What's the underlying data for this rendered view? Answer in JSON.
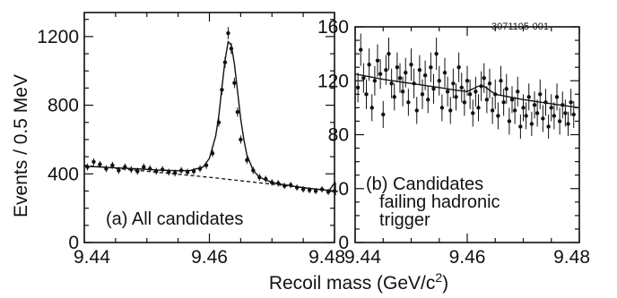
{
  "figure_tag": "3071105-001",
  "xlabel": "Recoil mass (GeV/c²)",
  "ylabel": "Events / 0.5 MeV",
  "chart_data": [
    {
      "type": "scatter",
      "annotation": "(a) All candidates",
      "xlim": [
        9.44,
        9.48
      ],
      "ylim": [
        0,
        1340
      ],
      "x_ticks": [
        9.44,
        9.46,
        9.48
      ],
      "x_tick_labels": [
        "9.44",
        "9.46",
        "9.48"
      ],
      "y_ticks": [
        0,
        400,
        800,
        1200
      ],
      "y_tick_labels": [
        "0",
        "400",
        "800",
        "1200"
      ],
      "points": [
        [
          9.4405,
          440,
          20
        ],
        [
          9.4415,
          470,
          20
        ],
        [
          9.4425,
          455,
          20
        ],
        [
          9.4435,
          430,
          20
        ],
        [
          9.4445,
          450,
          20
        ],
        [
          9.4455,
          420,
          20
        ],
        [
          9.4465,
          440,
          20
        ],
        [
          9.4475,
          425,
          20
        ],
        [
          9.4485,
          415,
          20
        ],
        [
          9.4495,
          440,
          20
        ],
        [
          9.4505,
          430,
          20
        ],
        [
          9.4515,
          415,
          20
        ],
        [
          9.4525,
          425,
          20
        ],
        [
          9.4535,
          410,
          20
        ],
        [
          9.4545,
          405,
          20
        ],
        [
          9.4555,
          420,
          20
        ],
        [
          9.4565,
          410,
          20
        ],
        [
          9.4575,
          415,
          20
        ],
        [
          9.4585,
          430,
          20
        ],
        [
          9.4595,
          450,
          21
        ],
        [
          9.4605,
          520,
          22
        ],
        [
          9.4615,
          700,
          26
        ],
        [
          9.462,
          890,
          30
        ],
        [
          9.4625,
          1050,
          32
        ],
        [
          9.463,
          1220,
          35
        ],
        [
          9.4635,
          1130,
          33
        ],
        [
          9.464,
          930,
          30
        ],
        [
          9.4645,
          760,
          27
        ],
        [
          9.465,
          600,
          24
        ],
        [
          9.466,
          480,
          22
        ],
        [
          9.467,
          420,
          21
        ],
        [
          9.468,
          380,
          20
        ],
        [
          9.469,
          370,
          19
        ],
        [
          9.47,
          350,
          19
        ],
        [
          9.471,
          345,
          19
        ],
        [
          9.472,
          330,
          18
        ],
        [
          9.473,
          335,
          18
        ],
        [
          9.474,
          320,
          18
        ],
        [
          9.475,
          310,
          18
        ],
        [
          9.476,
          305,
          18
        ],
        [
          9.477,
          300,
          18
        ],
        [
          9.478,
          310,
          18
        ],
        [
          9.479,
          295,
          18
        ],
        [
          9.48,
          300,
          18
        ]
      ],
      "fit_curve": [
        [
          9.44,
          445
        ],
        [
          9.444,
          437
        ],
        [
          9.448,
          430
        ],
        [
          9.452,
          422
        ],
        [
          9.455,
          418
        ],
        [
          9.457,
          420
        ],
        [
          9.459,
          440
        ],
        [
          9.46,
          490
        ],
        [
          9.461,
          620
        ],
        [
          9.4615,
          740
        ],
        [
          9.462,
          900
        ],
        [
          9.4625,
          1060
        ],
        [
          9.463,
          1170
        ],
        [
          9.4635,
          1150
        ],
        [
          9.464,
          1040
        ],
        [
          9.4645,
          880
        ],
        [
          9.465,
          720
        ],
        [
          9.4655,
          600
        ],
        [
          9.466,
          510
        ],
        [
          9.467,
          420
        ],
        [
          9.468,
          380
        ],
        [
          9.47,
          350
        ],
        [
          9.473,
          330
        ],
        [
          9.476,
          315
        ],
        [
          9.48,
          300
        ]
      ],
      "background_curve": [
        [
          9.44,
          450
        ],
        [
          9.46,
          380
        ],
        [
          9.48,
          300
        ]
      ]
    },
    {
      "type": "scatter",
      "annotation": [
        "(b) Candidates",
        "failing hadronic",
        "trigger"
      ],
      "xlim": [
        9.44,
        9.48
      ],
      "ylim": [
        0,
        160
      ],
      "x_ticks": [
        9.44,
        9.46,
        9.48
      ],
      "x_tick_labels": [
        "9.44",
        "9.46",
        "9.48"
      ],
      "y_ticks": [
        0,
        40,
        80,
        120,
        160
      ],
      "y_tick_labels": [
        "0",
        "40",
        "80",
        "120",
        "160"
      ],
      "points": [
        [
          9.4405,
          115,
          11
        ],
        [
          9.441,
          143,
          12
        ],
        [
          9.4415,
          122,
          11
        ],
        [
          9.442,
          110,
          11
        ],
        [
          9.4425,
          132,
          12
        ],
        [
          9.443,
          100,
          10
        ],
        [
          9.4435,
          120,
          11
        ],
        [
          9.444,
          135,
          12
        ],
        [
          9.4445,
          125,
          11
        ],
        [
          9.445,
          95,
          10
        ],
        [
          9.4455,
          128,
          11
        ],
        [
          9.446,
          140,
          12
        ],
        [
          9.4465,
          118,
          11
        ],
        [
          9.447,
          108,
          10
        ],
        [
          9.4475,
          130,
          11
        ],
        [
          9.448,
          122,
          11
        ],
        [
          9.4485,
          112,
          11
        ],
        [
          9.449,
          126,
          11
        ],
        [
          9.4495,
          104,
          10
        ],
        [
          9.45,
          132,
          12
        ],
        [
          9.4505,
          118,
          11
        ],
        [
          9.451,
          98,
          10
        ],
        [
          9.4515,
          128,
          11
        ],
        [
          9.452,
          110,
          11
        ],
        [
          9.4525,
          124,
          11
        ],
        [
          9.453,
          106,
          10
        ],
        [
          9.4535,
          130,
          11
        ],
        [
          9.454,
          114,
          11
        ],
        [
          9.4545,
          140,
          12
        ],
        [
          9.455,
          120,
          11
        ],
        [
          9.4555,
          100,
          10
        ],
        [
          9.456,
          126,
          11
        ],
        [
          9.4565,
          112,
          11
        ],
        [
          9.457,
          98,
          10
        ],
        [
          9.4575,
          118,
          11
        ],
        [
          9.458,
          108,
          10
        ],
        [
          9.4585,
          130,
          11
        ],
        [
          9.459,
          115,
          11
        ],
        [
          9.4595,
          104,
          10
        ],
        [
          9.46,
          120,
          11
        ],
        [
          9.4605,
          110,
          11
        ],
        [
          9.461,
          96,
          10
        ],
        [
          9.4615,
          112,
          11
        ],
        [
          9.462,
          100,
          10
        ],
        [
          9.4625,
          116,
          11
        ],
        [
          9.463,
          122,
          11
        ],
        [
          9.4635,
          106,
          10
        ],
        [
          9.464,
          118,
          11
        ],
        [
          9.4645,
          98,
          10
        ],
        [
          9.465,
          110,
          11
        ],
        [
          9.4655,
          94,
          10
        ],
        [
          9.466,
          120,
          11
        ],
        [
          9.4665,
          104,
          10
        ],
        [
          9.467,
          114,
          11
        ],
        [
          9.4675,
          90,
          10
        ],
        [
          9.468,
          106,
          10
        ],
        [
          9.4685,
          98,
          10
        ],
        [
          9.469,
          112,
          11
        ],
        [
          9.4695,
          86,
          9
        ],
        [
          9.47,
          100,
          10
        ],
        [
          9.4705,
          94,
          10
        ],
        [
          9.471,
          108,
          10
        ],
        [
          9.4715,
          88,
          9
        ],
        [
          9.472,
          102,
          10
        ],
        [
          9.4725,
          96,
          10
        ],
        [
          9.473,
          110,
          11
        ],
        [
          9.4735,
          92,
          10
        ],
        [
          9.474,
          104,
          10
        ],
        [
          9.4745,
          86,
          9
        ],
        [
          9.475,
          100,
          10
        ],
        [
          9.4755,
          94,
          10
        ],
        [
          9.476,
          108,
          10
        ],
        [
          9.4765,
          90,
          10
        ],
        [
          9.477,
          102,
          10
        ],
        [
          9.4775,
          96,
          10
        ],
        [
          9.478,
          88,
          9
        ],
        [
          9.4785,
          104,
          10
        ],
        [
          9.479,
          95,
          10
        ]
      ],
      "fit_curve": [
        [
          9.44,
          125
        ],
        [
          9.445,
          121
        ],
        [
          9.45,
          118
        ],
        [
          9.455,
          115
        ],
        [
          9.458,
          113
        ],
        [
          9.46,
          112
        ],
        [
          9.461,
          114
        ],
        [
          9.462,
          116
        ],
        [
          9.463,
          116
        ],
        [
          9.464,
          113
        ],
        [
          9.465,
          110
        ],
        [
          9.47,
          106
        ],
        [
          9.475,
          103
        ],
        [
          9.48,
          100
        ]
      ]
    }
  ]
}
